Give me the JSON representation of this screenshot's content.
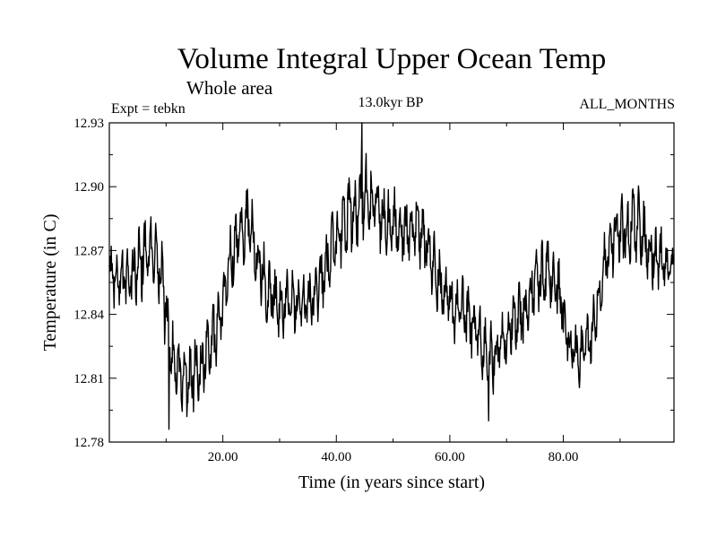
{
  "chart_data": {
    "type": "line",
    "title": "Volume Integral Upper Ocean Temp",
    "subtitle": "Whole area",
    "experiment": "Expt = tebkn",
    "period": "13.0kyr BP",
    "months": "ALL_MONTHS",
    "xlabel": "Time (in years since start)",
    "ylabel": "Temperature (in C)",
    "xlim": [
      0,
      99.5
    ],
    "ylim": [
      12.78,
      12.93
    ],
    "x_ticks": [
      20,
      40,
      60,
      80
    ],
    "x_tick_labels": [
      "20.00",
      "40.00",
      "60.00",
      "80.00"
    ],
    "y_ticks": [
      12.78,
      12.81,
      12.84,
      12.87,
      12.9,
      12.93
    ],
    "y_tick_labels": [
      "12.78",
      "12.81",
      "12.84",
      "12.87",
      "12.90",
      "12.93"
    ],
    "grid": false,
    "sampling": "monthly",
    "series": [
      {
        "name": "Volume integral upper ocean temperature",
        "color": "#000000",
        "envelope_x": [
          0,
          2,
          4,
          6,
          8,
          9.5,
          11,
          13,
          15,
          17,
          19,
          21,
          23,
          24.5,
          26,
          28,
          30,
          32,
          34,
          36,
          38,
          40,
          42,
          44,
          45,
          47,
          49,
          51,
          53,
          55,
          57,
          59,
          61,
          63,
          65,
          67,
          69,
          71,
          73,
          75,
          77,
          79,
          81,
          83,
          85,
          87,
          89,
          91,
          93,
          95,
          97,
          99.5
        ],
        "envelope_center": [
          12.86,
          12.855,
          12.858,
          12.868,
          12.872,
          12.852,
          12.82,
          12.808,
          12.812,
          12.818,
          12.835,
          12.862,
          12.878,
          12.885,
          12.868,
          12.85,
          12.845,
          12.845,
          12.842,
          12.848,
          12.86,
          12.878,
          12.885,
          12.892,
          12.898,
          12.892,
          12.882,
          12.883,
          12.878,
          12.88,
          12.864,
          12.85,
          12.842,
          12.84,
          12.83,
          12.818,
          12.825,
          12.835,
          12.84,
          12.855,
          12.86,
          12.852,
          12.828,
          12.82,
          12.83,
          12.862,
          12.878,
          12.88,
          12.883,
          12.872,
          12.865,
          12.862
        ],
        "envelope_halfwidth": [
          0.015,
          0.015,
          0.015,
          0.02,
          0.018,
          0.02,
          0.018,
          0.016,
          0.02,
          0.018,
          0.018,
          0.017,
          0.018,
          0.017,
          0.017,
          0.016,
          0.016,
          0.016,
          0.015,
          0.016,
          0.016,
          0.018,
          0.02,
          0.022,
          0.02,
          0.018,
          0.018,
          0.016,
          0.016,
          0.017,
          0.016,
          0.016,
          0.016,
          0.016,
          0.016,
          0.018,
          0.017,
          0.016,
          0.017,
          0.017,
          0.017,
          0.017,
          0.016,
          0.016,
          0.017,
          0.018,
          0.017,
          0.018,
          0.018,
          0.017,
          0.016,
          0.01
        ],
        "notable_points": [
          {
            "x": 44.5,
            "y": 12.93,
            "label": "maximum"
          },
          {
            "x": 10.5,
            "y": 12.786,
            "label": "minimum"
          },
          {
            "x": 66.8,
            "y": 12.79,
            "label": "local minimum"
          }
        ]
      }
    ]
  }
}
